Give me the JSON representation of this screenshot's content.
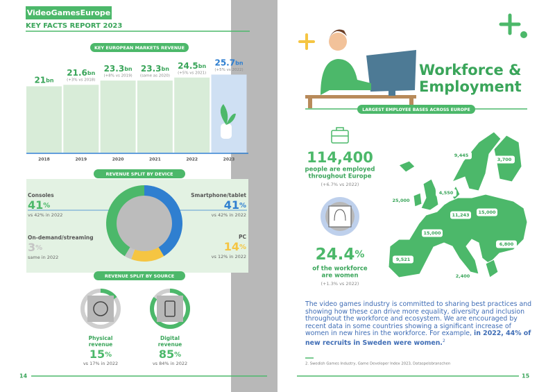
{
  "header": {
    "brand": "VideoGamesEurope",
    "report": "KEY FACTS REPORT 2023"
  },
  "markets": {
    "title": "KEY EUROPEAN MARKETS REVENUE",
    "unit": "bn",
    "items": [
      {
        "year": "2018",
        "amount": 21
      },
      {
        "year": "2019",
        "amount": 21.6,
        "note": "(+3% vs 2018)"
      },
      {
        "year": "2020",
        "amount": 23.3,
        "note": "(+8% vs 2019)"
      },
      {
        "year": "2021",
        "amount": 23.3,
        "note": "(same as 2020)"
      },
      {
        "year": "2022",
        "amount": 24.5,
        "note": "(+5% vs 2021)"
      },
      {
        "year": "2023",
        "amount": 25.7,
        "note": "(+5% vs 2022)"
      }
    ]
  },
  "devices": {
    "title": "REVENUE SPLIT BY DEVICE",
    "unit": "%",
    "items": [
      {
        "name": "Smartphone/tablet",
        "share": 41,
        "note": "vs 42% in 2022",
        "color": "#2f7fd0"
      },
      {
        "name": "PC",
        "share": 14,
        "note": "vs 12% in 2022",
        "color": "#f5c542"
      },
      {
        "name": "On-demand/streaming",
        "share": 3,
        "note": "same in 2022",
        "color": "#c4c4c4"
      },
      {
        "name": "Consoles",
        "share": 41,
        "note": "vs 42% in 2022",
        "color": "#4cb86a"
      }
    ]
  },
  "sources": {
    "title": "REVENUE SPLIT BY SOURCE",
    "unit": "%",
    "items": [
      {
        "name": [
          "Physical",
          "revenue"
        ],
        "share": 15,
        "note": "vs 17% in 2022"
      },
      {
        "name": [
          "Digital",
          "revenue"
        ],
        "share": 85,
        "note": "vs 84% in 2022"
      }
    ]
  },
  "page_left": "14",
  "page_right": "15",
  "workforce": {
    "title": [
      "Workforce &",
      "Employment"
    ],
    "map_title": "LARGEST EMPLOYEE BASES ACROSS EUROPE",
    "employed": {
      "value": "114,400",
      "text": [
        "people are employed",
        "throughout Europe"
      ],
      "note": "(+6.7% vs 2022)"
    },
    "women": {
      "value": 24.4,
      "unit": "%",
      "text": [
        "of the workforce",
        "are women"
      ],
      "note": "(+1.3% vs 2022)"
    },
    "map_labels": [
      "9,445",
      "3,700",
      "4,550",
      "25,000",
      "11,243",
      "15,000",
      "15,000",
      "6,800",
      "9,521",
      "2,400"
    ],
    "paragraph": {
      "text": "The video games industry is committed to sharing best practices and showing how these can drive more equality, diversity and inclusion throughout the workforce and ecosystem. We are encouraged by recent data in some countries showing a significant increase of women in new hires in the workforce. For example, ",
      "highlight": "in 2022, 44% of new recruits in Sweden were women.",
      "note_ref": "2"
    },
    "footnote": "2. Swedish Games Industry, Game Developer Index 2023, Dataspelsbranschen"
  }
}
